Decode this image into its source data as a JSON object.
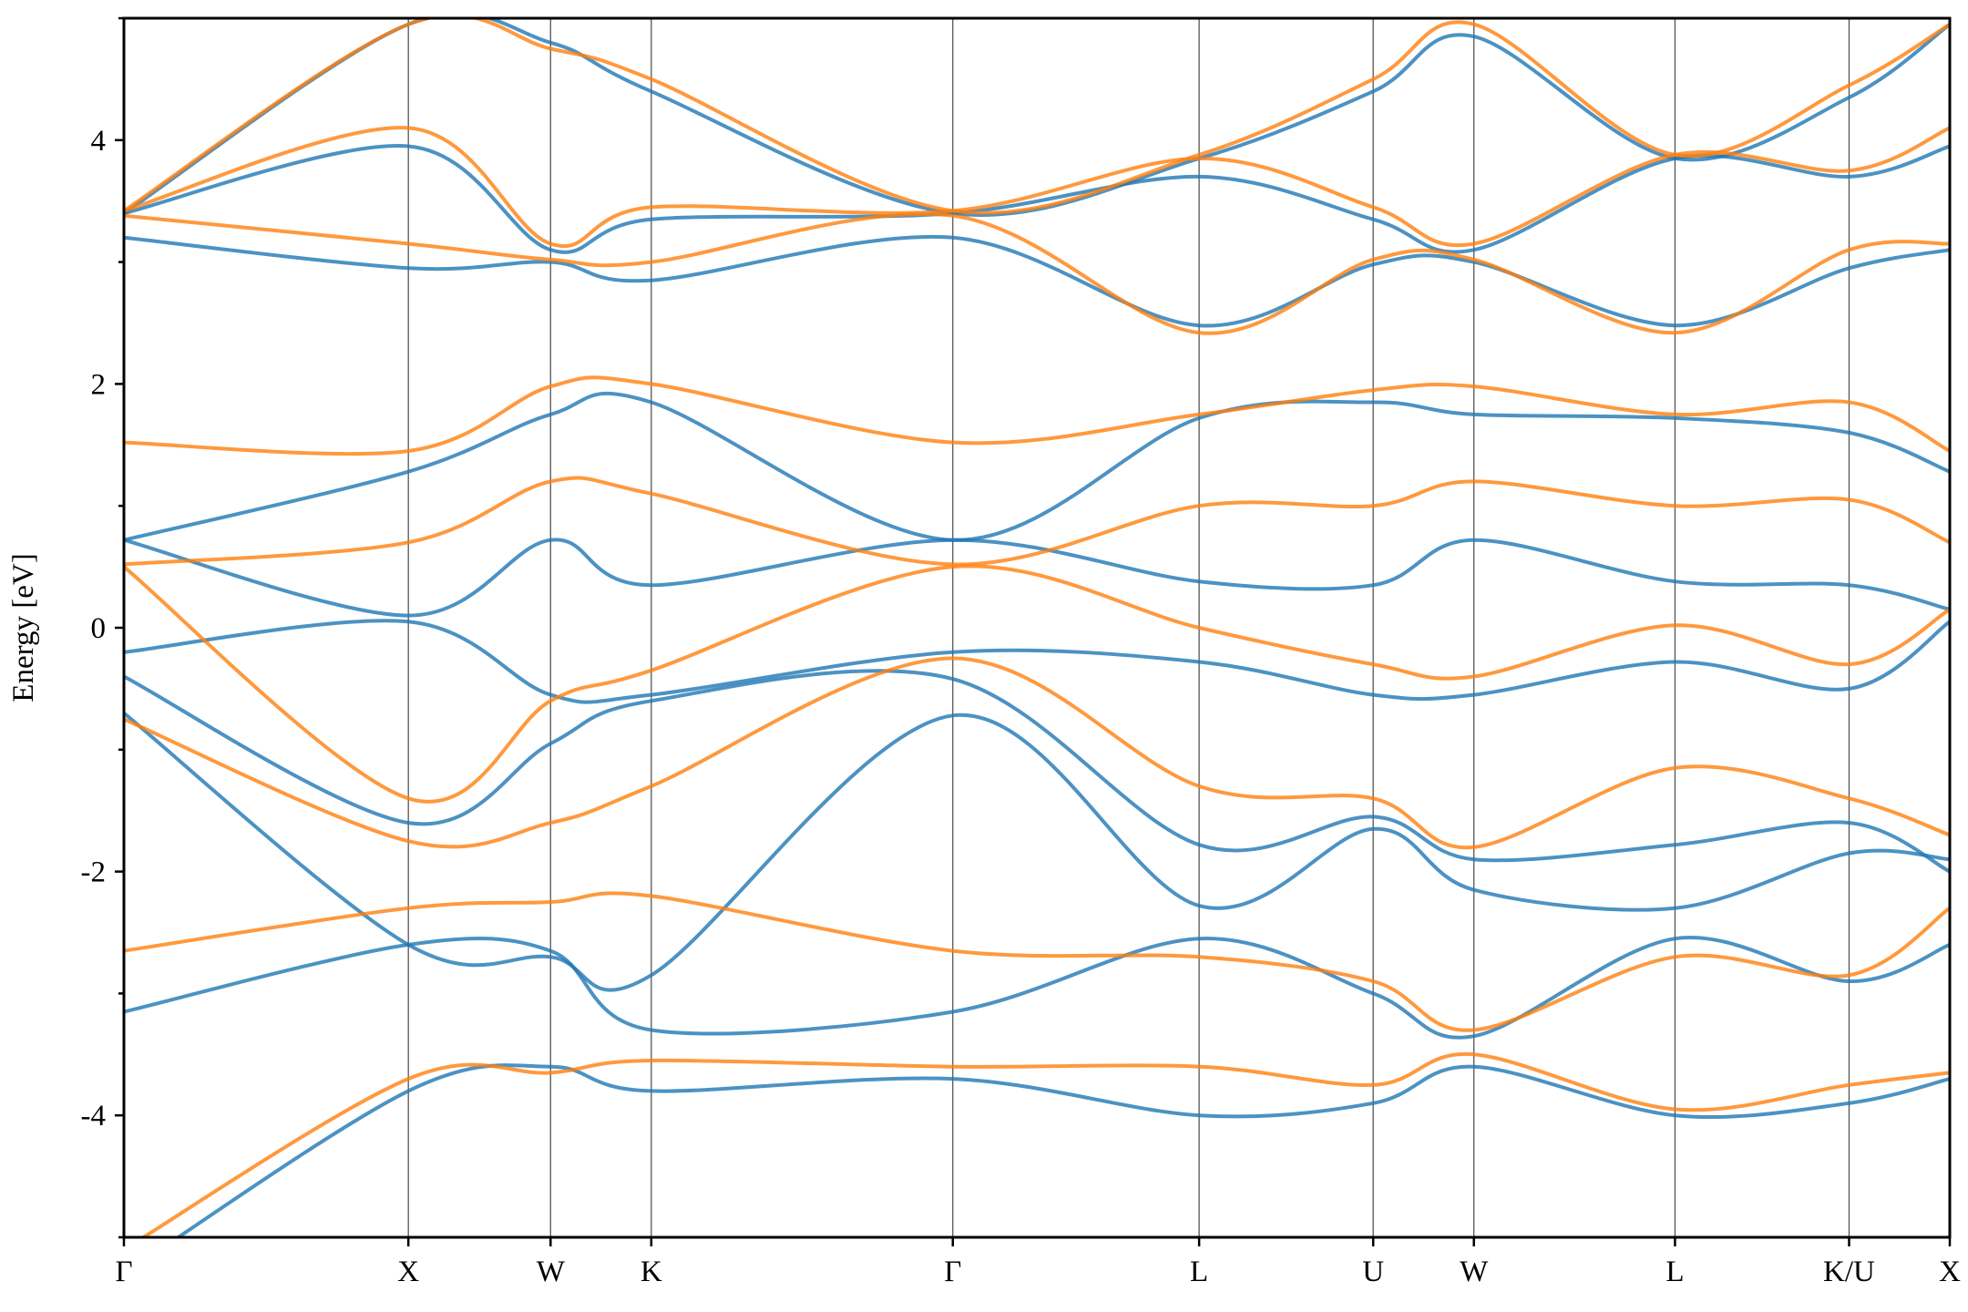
{
  "chart_data": {
    "type": "line",
    "title": "",
    "xlabel": "",
    "ylabel": "Energy [eV]",
    "ylim": [
      -5,
      5
    ],
    "yticks": [
      -4,
      -2,
      0,
      2,
      4
    ],
    "ytick_labels": [
      "-4",
      "-2",
      "0",
      "2",
      "4"
    ],
    "grid": false,
    "legend": "none",
    "path_labels": [
      "Γ",
      "X",
      "W",
      "K",
      "Γ",
      "L",
      "U",
      "W",
      "L",
      "K/U",
      "X"
    ],
    "path_positions": [
      0,
      1.0,
      1.5,
      1.854,
      2.914,
      3.78,
      4.392,
      4.746,
      5.453,
      6.065,
      6.419
    ],
    "series_colors": [
      "#1f77b4",
      "#ff7f0e"
    ],
    "series": [
      {
        "color": "#1f77b4",
        "bands": [
          {
            "x": [
              0,
              1.0,
              1.5,
              1.854,
              2.914,
              3.78,
              4.392,
              4.746,
              5.453,
              6.065,
              6.419
            ],
            "y": [
              -5.3,
              -3.8,
              -3.6,
              -3.8,
              -3.7,
              -4.0,
              -3.9,
              -3.6,
              -4.0,
              -3.9,
              -3.7
            ]
          },
          {
            "x": [
              0,
              1.0,
              1.5,
              1.854,
              2.914,
              3.78,
              4.392,
              4.746,
              5.453,
              6.065,
              6.419
            ],
            "y": [
              -3.15,
              -2.6,
              -2.65,
              -3.3,
              -3.15,
              -2.55,
              -3.0,
              -3.35,
              -2.55,
              -2.9,
              -2.6
            ]
          },
          {
            "x": [
              0,
              1.0,
              1.5,
              1.854,
              2.914,
              3.78,
              4.392,
              4.746,
              5.453,
              6.065,
              6.419
            ],
            "y": [
              -0.7,
              -2.6,
              -2.7,
              -2.85,
              -0.72,
              -2.28,
              -1.65,
              -2.15,
              -2.3,
              -1.85,
              -1.9
            ]
          },
          {
            "x": [
              0,
              1.0,
              1.5,
              1.854,
              2.914,
              3.78,
              4.392,
              4.746,
              5.453,
              6.065,
              6.419
            ],
            "y": [
              -0.4,
              -1.6,
              -0.95,
              -0.6,
              -0.42,
              -1.78,
              -1.55,
              -1.9,
              -1.78,
              -1.6,
              -2.0
            ]
          },
          {
            "x": [
              0,
              1.0,
              1.5,
              1.854,
              2.914,
              3.78,
              4.392,
              4.746,
              5.453,
              6.065,
              6.419
            ],
            "y": [
              -0.2,
              0.05,
              -0.55,
              -0.55,
              -0.2,
              -0.28,
              -0.55,
              -0.55,
              -0.28,
              -0.5,
              0.05
            ]
          },
          {
            "x": [
              0,
              1.0,
              1.5,
              1.854,
              2.914,
              3.78,
              4.392,
              4.746,
              5.453,
              6.065,
              6.419
            ],
            "y": [
              0.72,
              0.1,
              0.72,
              0.35,
              0.72,
              0.38,
              0.35,
              0.72,
              0.38,
              0.35,
              0.15
            ]
          },
          {
            "x": [
              0,
              1.0,
              1.5,
              1.854,
              2.914,
              3.78,
              4.392,
              4.746,
              5.453,
              6.065,
              6.419
            ],
            "y": [
              0.72,
              1.28,
              1.75,
              1.85,
              0.72,
              1.72,
              1.85,
              1.75,
              1.72,
              1.6,
              1.28
            ]
          },
          {
            "x": [
              0,
              1.0,
              1.5,
              1.854,
              2.914,
              3.78,
              4.392,
              4.746,
              5.453,
              6.065,
              6.419
            ],
            "y": [
              3.2,
              2.95,
              3.0,
              2.85,
              3.2,
              2.48,
              2.98,
              3.0,
              2.48,
              2.95,
              3.1
            ]
          },
          {
            "x": [
              0,
              1.0,
              1.5,
              1.854,
              2.914,
              3.78,
              4.392,
              4.746,
              5.453,
              6.065,
              6.419
            ],
            "y": [
              3.4,
              3.95,
              3.1,
              3.35,
              3.4,
              3.7,
              3.35,
              3.1,
              3.85,
              3.7,
              3.95
            ]
          },
          {
            "x": [
              0,
              1.0,
              1.5,
              1.854,
              2.914,
              3.78,
              4.392,
              4.746,
              5.453,
              6.065,
              6.419
            ],
            "y": [
              3.4,
              4.95,
              4.8,
              4.4,
              3.4,
              3.85,
              4.4,
              4.85,
              3.85,
              4.35,
              4.95
            ]
          }
        ]
      },
      {
        "color": "#ff7f0e",
        "bands": [
          {
            "x": [
              0,
              1.0,
              1.5,
              1.854,
              2.914,
              3.78,
              4.392,
              4.746,
              5.453,
              6.065,
              6.419
            ],
            "y": [
              -5.1,
              -3.7,
              -3.65,
              -3.55,
              -3.6,
              -3.6,
              -3.75,
              -3.5,
              -3.95,
              -3.75,
              -3.65
            ]
          },
          {
            "x": [
              0,
              1.0,
              1.5,
              1.854,
              2.914,
              3.78,
              4.392,
              4.746,
              5.453,
              6.065,
              6.419
            ],
            "y": [
              -2.65,
              -2.3,
              -2.25,
              -2.2,
              -2.65,
              -2.7,
              -2.9,
              -3.3,
              -2.7,
              -2.85,
              -2.3
            ]
          },
          {
            "x": [
              0,
              1.0,
              1.5,
              1.854,
              2.914,
              3.78,
              4.392,
              4.746,
              5.453,
              6.065,
              6.419
            ],
            "y": [
              -0.75,
              -1.75,
              -1.6,
              -1.3,
              -0.25,
              -1.3,
              -1.4,
              -1.8,
              -1.15,
              -1.4,
              -1.7
            ]
          },
          {
            "x": [
              0,
              1.0,
              1.5,
              1.854,
              2.914,
              3.78,
              4.392,
              4.746,
              5.453,
              6.065,
              6.419
            ],
            "y": [
              0.5,
              -1.4,
              -0.6,
              -0.35,
              0.5,
              0.0,
              -0.3,
              -0.4,
              0.02,
              -0.3,
              0.15
            ]
          },
          {
            "x": [
              0,
              1.0,
              1.5,
              1.854,
              2.914,
              3.78,
              4.392,
              4.746,
              5.453,
              6.065,
              6.419
            ],
            "y": [
              0.52,
              0.7,
              1.2,
              1.1,
              0.52,
              1.0,
              1.0,
              1.2,
              1.0,
              1.05,
              0.7
            ]
          },
          {
            "x": [
              0,
              1.0,
              1.5,
              1.854,
              2.914,
              3.78,
              4.392,
              4.746,
              5.453,
              6.065,
              6.419
            ],
            "y": [
              1.52,
              1.45,
              1.98,
              2.0,
              1.52,
              1.75,
              1.95,
              1.98,
              1.75,
              1.85,
              1.45
            ]
          },
          {
            "x": [
              0,
              1.0,
              1.5,
              1.854,
              2.914,
              3.78,
              4.392,
              4.746,
              5.453,
              6.065,
              6.419
            ],
            "y": [
              3.38,
              3.15,
              3.02,
              3.0,
              3.38,
              2.42,
              3.02,
              3.02,
              2.42,
              3.1,
              3.15
            ]
          },
          {
            "x": [
              0,
              1.0,
              1.5,
              1.854,
              2.914,
              3.78,
              4.392,
              4.746,
              5.453,
              6.065,
              6.419
            ],
            "y": [
              3.42,
              4.1,
              3.15,
              3.45,
              3.42,
              3.85,
              3.45,
              3.15,
              3.88,
              3.75,
              4.1
            ]
          },
          {
            "x": [
              0,
              1.0,
              1.5,
              1.854,
              2.914,
              3.78,
              4.392,
              4.746,
              5.453,
              6.065,
              6.419
            ],
            "y": [
              3.42,
              4.95,
              4.75,
              4.5,
              3.42,
              3.88,
              4.5,
              4.95,
              3.88,
              4.45,
              4.95
            ]
          }
        ]
      }
    ]
  }
}
